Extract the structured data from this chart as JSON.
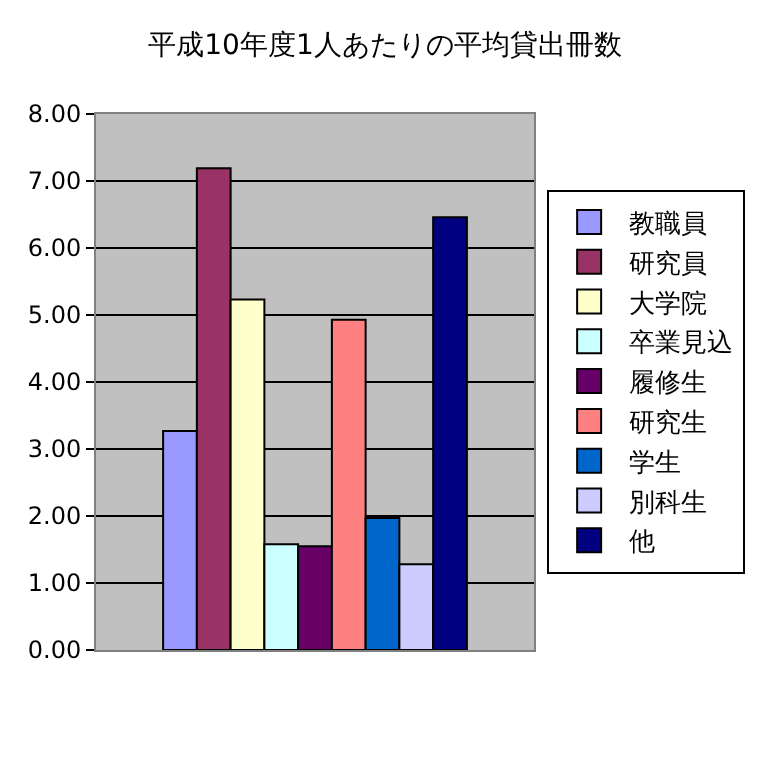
{
  "chart_data": {
    "type": "bar",
    "title": "平成10年度1人あたりの平均貸出冊数",
    "categories": [
      null
    ],
    "series": [
      {
        "name": "教職員",
        "color": "#9999ff",
        "values": [
          3.27
        ]
      },
      {
        "name": "研究員",
        "color": "#993366",
        "values": [
          7.19
        ]
      },
      {
        "name": "大学院",
        "color": "#ffffcc",
        "values": [
          5.23
        ]
      },
      {
        "name": "卒業見込",
        "color": "#ccffff",
        "values": [
          1.58
        ]
      },
      {
        "name": "履修生",
        "color": "#660066",
        "values": [
          1.55
        ]
      },
      {
        "name": "研究生",
        "color": "#ff8080",
        "values": [
          4.93
        ]
      },
      {
        "name": "学生",
        "color": "#0066cc",
        "values": [
          1.97
        ]
      },
      {
        "name": "別科生",
        "color": "#ccccff",
        "values": [
          1.28
        ]
      },
      {
        "name": "他",
        "color": "#000080",
        "values": [
          6.46
        ]
      }
    ],
    "ylim": [
      0,
      8
    ],
    "yticks": [
      {
        "value": 0,
        "label": "0.00"
      },
      {
        "value": 1,
        "label": "1.00"
      },
      {
        "value": 2,
        "label": "2.00"
      },
      {
        "value": 3,
        "label": "3.00"
      },
      {
        "value": 4,
        "label": "4.00"
      },
      {
        "value": 5,
        "label": "5.00"
      },
      {
        "value": 6,
        "label": "6.00"
      },
      {
        "value": 7,
        "label": "7.00"
      },
      {
        "value": 8,
        "label": "8.00"
      }
    ],
    "grid": "y",
    "legend": "right"
  }
}
